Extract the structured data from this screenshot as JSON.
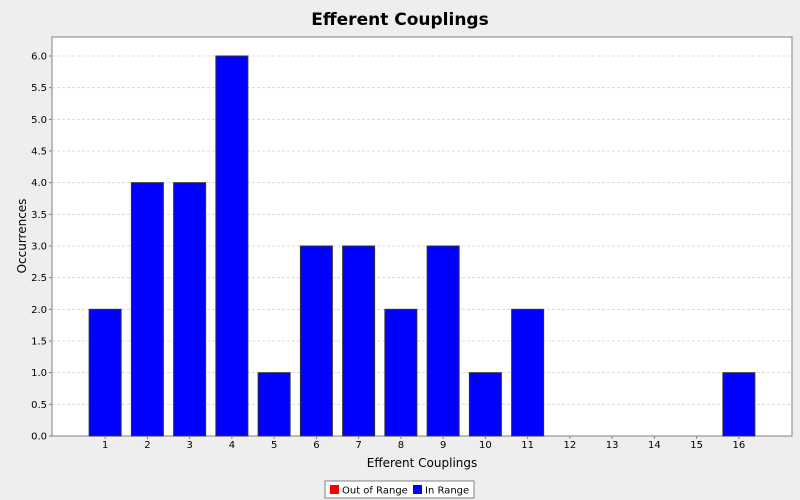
{
  "chart_data": {
    "type": "bar",
    "title": "Efferent Couplings",
    "xlabel": "Efferent Couplings",
    "ylabel": "Occurrences",
    "categories": [
      "1",
      "2",
      "3",
      "4",
      "5",
      "6",
      "7",
      "8",
      "9",
      "10",
      "11",
      "12",
      "13",
      "14",
      "15",
      "16"
    ],
    "series": [
      {
        "name": "In Range",
        "values": [
          2,
          4,
          4,
          6,
          1,
          3,
          3,
          2,
          3,
          1,
          2,
          0,
          0,
          0,
          0,
          1
        ]
      }
    ],
    "ylim": [
      0,
      6.3
    ],
    "yticks": [
      "0.0",
      "0.5",
      "1.0",
      "1.5",
      "2.0",
      "2.5",
      "3.0",
      "3.5",
      "4.0",
      "4.5",
      "5.0",
      "5.5",
      "6.0"
    ],
    "grid": true,
    "legend": {
      "placement": "bottom-center",
      "entries": [
        {
          "label": "Out of Range",
          "color": "#ff0000"
        },
        {
          "label": "In Range",
          "color": "#0000ff"
        }
      ]
    },
    "colors": {
      "bar": "#0000ff",
      "plot_background": "#ffffff",
      "page_background": "#eeeeee",
      "grid": "#d4d4d4"
    }
  }
}
